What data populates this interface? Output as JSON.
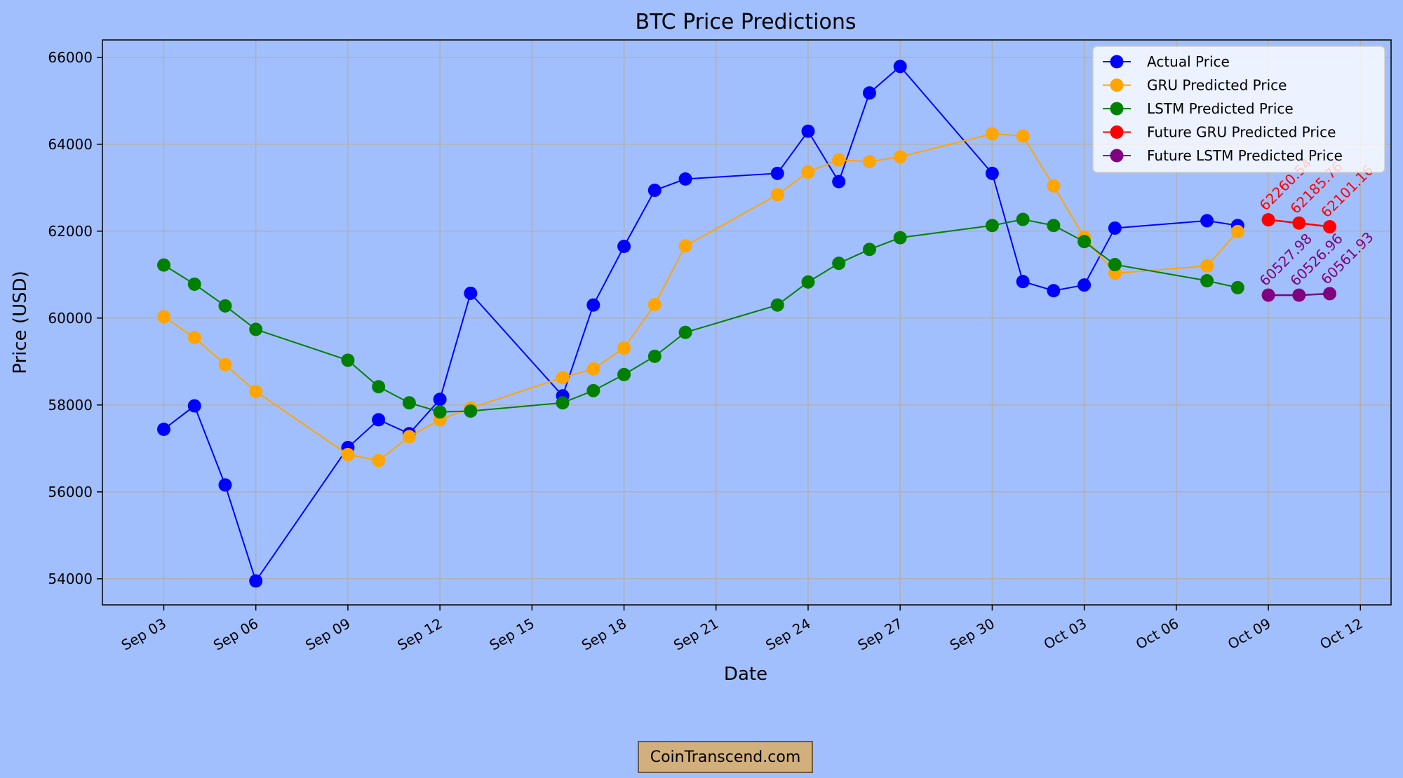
{
  "chart_data": {
    "type": "line",
    "title": "BTC Price Predictions",
    "xlabel": "Date",
    "ylabel": "Price (USD)",
    "x_axis_type": "date",
    "xlim": [
      "2024-09-01",
      "2024-10-13"
    ],
    "ylim": [
      53400,
      66400
    ],
    "x_ticks": [
      "2024-09-03",
      "2024-09-06",
      "2024-09-09",
      "2024-09-12",
      "2024-09-15",
      "2024-09-18",
      "2024-09-21",
      "2024-09-24",
      "2024-09-27",
      "2024-09-30",
      "2024-10-03",
      "2024-10-06",
      "2024-10-09",
      "2024-10-12"
    ],
    "x_tick_labels": [
      "Sep 03",
      "Sep 06",
      "Sep 09",
      "Sep 12",
      "Sep 15",
      "Sep 18",
      "Sep 21",
      "Sep 24",
      "Sep 27",
      "Sep 30",
      "Oct 03",
      "Oct 06",
      "Oct 09",
      "Oct 12"
    ],
    "y_ticks": [
      54000,
      56000,
      58000,
      60000,
      62000,
      64000,
      66000
    ],
    "y_tick_labels": [
      "54000",
      "56000",
      "58000",
      "60000",
      "62000",
      "64000",
      "66000"
    ],
    "grid": true,
    "legend_position": "top-right",
    "series": [
      {
        "name": "Actual Price",
        "color": "#0000ff",
        "marker": "circle",
        "points": [
          [
            "2024-09-03",
            57440
          ],
          [
            "2024-09-04",
            57980
          ],
          [
            "2024-09-05",
            56160
          ],
          [
            "2024-09-06",
            53950
          ],
          [
            "2024-09-09",
            57020
          ],
          [
            "2024-09-10",
            57660
          ],
          [
            "2024-09-11",
            57340
          ],
          [
            "2024-09-12",
            58130
          ],
          [
            "2024-09-13",
            60570
          ],
          [
            "2024-09-16",
            58210
          ],
          [
            "2024-09-17",
            60300
          ],
          [
            "2024-09-18",
            61650
          ],
          [
            "2024-09-19",
            62940
          ],
          [
            "2024-09-20",
            63200
          ],
          [
            "2024-09-23",
            63330
          ],
          [
            "2024-09-24",
            64300
          ],
          [
            "2024-09-25",
            63140
          ],
          [
            "2024-09-26",
            65180
          ],
          [
            "2024-09-27",
            65790
          ],
          [
            "2024-09-30",
            63330
          ],
          [
            "2024-10-01",
            60840
          ],
          [
            "2024-10-02",
            60630
          ],
          [
            "2024-10-03",
            60760
          ],
          [
            "2024-10-04",
            62070
          ],
          [
            "2024-10-07",
            62240
          ],
          [
            "2024-10-08",
            62130
          ]
        ]
      },
      {
        "name": "GRU Predicted Price",
        "color": "#ffa500",
        "marker": "circle",
        "points": [
          [
            "2024-09-03",
            60030
          ],
          [
            "2024-09-04",
            59550
          ],
          [
            "2024-09-05",
            58930
          ],
          [
            "2024-09-06",
            58310
          ],
          [
            "2024-09-09",
            56860
          ],
          [
            "2024-09-10",
            56720
          ],
          [
            "2024-09-11",
            57270
          ],
          [
            "2024-09-12",
            57660
          ],
          [
            "2024-09-13",
            57930
          ],
          [
            "2024-09-16",
            58630
          ],
          [
            "2024-09-17",
            58830
          ],
          [
            "2024-09-18",
            59310
          ],
          [
            "2024-09-19",
            60310
          ],
          [
            "2024-09-20",
            61660
          ],
          [
            "2024-09-23",
            62840
          ],
          [
            "2024-09-24",
            63360
          ],
          [
            "2024-09-25",
            63640
          ],
          [
            "2024-09-26",
            63600
          ],
          [
            "2024-09-27",
            63710
          ],
          [
            "2024-09-30",
            64240
          ],
          [
            "2024-10-01",
            64190
          ],
          [
            "2024-10-02",
            63040
          ],
          [
            "2024-10-03",
            61860
          ],
          [
            "2024-10-04",
            61030
          ],
          [
            "2024-10-07",
            61200
          ],
          [
            "2024-10-08",
            61990
          ]
        ]
      },
      {
        "name": "LSTM Predicted Price",
        "color": "#008000",
        "marker": "circle",
        "points": [
          [
            "2024-09-03",
            61220
          ],
          [
            "2024-09-04",
            60780
          ],
          [
            "2024-09-05",
            60280
          ],
          [
            "2024-09-06",
            59740
          ],
          [
            "2024-09-09",
            59030
          ],
          [
            "2024-09-10",
            58420
          ],
          [
            "2024-09-11",
            58050
          ],
          [
            "2024-09-12",
            57840
          ],
          [
            "2024-09-13",
            57860
          ],
          [
            "2024-09-16",
            58050
          ],
          [
            "2024-09-17",
            58330
          ],
          [
            "2024-09-18",
            58700
          ],
          [
            "2024-09-19",
            59120
          ],
          [
            "2024-09-20",
            59670
          ],
          [
            "2024-09-23",
            60300
          ],
          [
            "2024-09-24",
            60830
          ],
          [
            "2024-09-25",
            61260
          ],
          [
            "2024-09-26",
            61580
          ],
          [
            "2024-09-27",
            61850
          ],
          [
            "2024-09-30",
            62130
          ],
          [
            "2024-10-01",
            62270
          ],
          [
            "2024-10-02",
            62130
          ],
          [
            "2024-10-03",
            61760
          ],
          [
            "2024-10-04",
            61230
          ],
          [
            "2024-10-07",
            60860
          ],
          [
            "2024-10-08",
            60700
          ]
        ]
      },
      {
        "name": "Future GRU Predicted Price",
        "color": "#ff0000",
        "marker": "circle",
        "label_color": "#ff0000",
        "points": [
          [
            "2024-10-09",
            62260.54
          ],
          [
            "2024-10-10",
            62185.76
          ],
          [
            "2024-10-11",
            62101.16
          ]
        ],
        "labels": [
          "62260.54",
          "62185.76",
          "62101.16"
        ]
      },
      {
        "name": "Future LSTM Predicted Price",
        "color": "#800080",
        "marker": "circle",
        "label_color": "#800080",
        "points": [
          [
            "2024-10-09",
            60527.98
          ],
          [
            "2024-10-10",
            60526.96
          ],
          [
            "2024-10-11",
            60561.93
          ]
        ],
        "labels": [
          "60527.98",
          "60526.96",
          "60561.93"
        ]
      }
    ]
  },
  "watermark": {
    "text": "CoinTranscend.com"
  }
}
